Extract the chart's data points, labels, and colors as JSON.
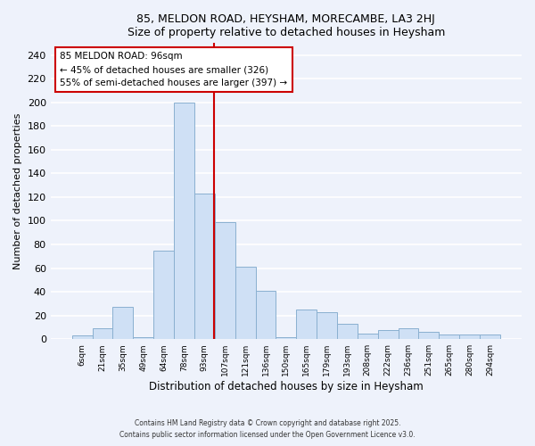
{
  "title": "85, MELDON ROAD, HEYSHAM, MORECAMBE, LA3 2HJ",
  "subtitle": "Size of property relative to detached houses in Heysham",
  "xlabel": "Distribution of detached houses by size in Heysham",
  "ylabel": "Number of detached properties",
  "bar_labels": [
    "6sqm",
    "21sqm",
    "35sqm",
    "49sqm",
    "64sqm",
    "78sqm",
    "93sqm",
    "107sqm",
    "121sqm",
    "136sqm",
    "150sqm",
    "165sqm",
    "179sqm",
    "193sqm",
    "208sqm",
    "222sqm",
    "236sqm",
    "251sqm",
    "265sqm",
    "280sqm",
    "294sqm"
  ],
  "bar_values": [
    3,
    9,
    27,
    2,
    75,
    200,
    123,
    99,
    61,
    41,
    2,
    25,
    23,
    13,
    5,
    8,
    9,
    6,
    4,
    4,
    4
  ],
  "bar_color": "#cfe0f5",
  "bar_edge_color": "#8ab0d0",
  "vline_color": "#cc0000",
  "annotation_title": "85 MELDON ROAD: 96sqm",
  "annotation_line1": "← 45% of detached houses are smaller (326)",
  "annotation_line2": "55% of semi-detached houses are larger (397) →",
  "annotation_box_color": "white",
  "annotation_box_edge": "#cc0000",
  "ylim": [
    0,
    250
  ],
  "yticks": [
    0,
    20,
    40,
    60,
    80,
    100,
    120,
    140,
    160,
    180,
    200,
    220,
    240
  ],
  "footer1": "Contains HM Land Registry data © Crown copyright and database right 2025.",
  "footer2": "Contains public sector information licensed under the Open Government Licence v3.0.",
  "background_color": "#eef2fb",
  "grid_color": "#ffffff"
}
